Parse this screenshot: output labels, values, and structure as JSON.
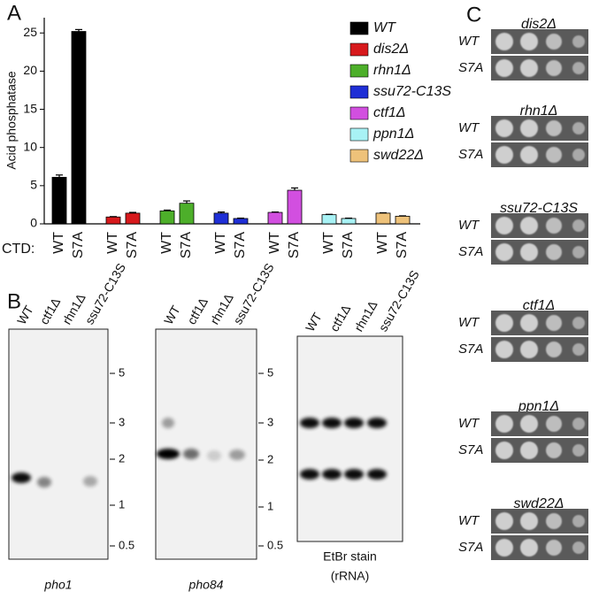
{
  "chart_data": {
    "type": "bar",
    "panel_label": "A",
    "ylabel": "Acid phosphatase",
    "xlabel": "CTD:",
    "categories": [
      "WT",
      "S7A",
      "WT",
      "S7A",
      "WT",
      "S7A",
      "WT",
      "S7A",
      "WT",
      "S7A",
      "WT",
      "S7A",
      "WT",
      "S7A"
    ],
    "series": [
      {
        "name": "WT",
        "color": "#000000",
        "values": [
          6.1,
          25.2,
          null,
          null,
          null,
          null,
          null,
          null,
          null,
          null,
          null,
          null,
          null,
          null
        ],
        "errors": [
          0.3,
          0.25,
          null,
          null,
          null,
          null,
          null,
          null,
          null,
          null,
          null,
          null,
          null,
          null
        ]
      },
      {
        "name": "dis2Δ",
        "color": "#d7191c",
        "values": [
          null,
          null,
          0.9,
          1.4,
          null,
          null,
          null,
          null,
          null,
          null,
          null,
          null,
          null,
          null
        ],
        "errors": [
          null,
          null,
          0.05,
          0.1,
          null,
          null,
          null,
          null,
          null,
          null,
          null,
          null,
          null,
          null
        ]
      },
      {
        "name": "rhn1Δ",
        "color": "#4daf2a",
        "values": [
          null,
          null,
          null,
          null,
          1.7,
          2.7,
          null,
          null,
          null,
          null,
          null,
          null,
          null,
          null
        ],
        "errors": [
          null,
          null,
          null,
          null,
          0.1,
          0.3,
          null,
          null,
          null,
          null,
          null,
          null,
          null,
          null
        ]
      },
      {
        "name": "ssu72-C13S",
        "color": "#1f2fd6",
        "values": [
          null,
          null,
          null,
          null,
          null,
          null,
          1.4,
          0.7,
          null,
          null,
          null,
          null,
          null,
          null
        ],
        "errors": [
          null,
          null,
          null,
          null,
          null,
          null,
          0.15,
          0.05,
          null,
          null,
          null,
          null,
          null,
          null
        ]
      },
      {
        "name": "ctf1Δ",
        "color": "#d24fe0",
        "values": [
          null,
          null,
          null,
          null,
          null,
          null,
          null,
          null,
          1.5,
          4.4,
          null,
          null,
          null,
          null
        ],
        "errors": [
          null,
          null,
          null,
          null,
          null,
          null,
          null,
          null,
          0.05,
          0.3,
          null,
          null,
          null,
          null
        ]
      },
      {
        "name": "ppn1Δ",
        "color": "#a8f2f5",
        "values": [
          null,
          null,
          null,
          null,
          null,
          null,
          null,
          null,
          null,
          null,
          1.2,
          0.7,
          null,
          null
        ],
        "errors": [
          null,
          null,
          null,
          null,
          null,
          null,
          null,
          null,
          null,
          null,
          0.05,
          0.05,
          null,
          null
        ]
      },
      {
        "name": "swd22Δ",
        "color": "#eec27a",
        "values": [
          null,
          null,
          null,
          null,
          null,
          null,
          null,
          null,
          null,
          null,
          null,
          null,
          1.4,
          1.0
        ],
        "errors": [
          null,
          null,
          null,
          null,
          null,
          null,
          null,
          null,
          null,
          null,
          null,
          null,
          0.05,
          0.05
        ]
      }
    ],
    "ylim": [
      0,
      27
    ],
    "yticks": [
      0,
      5,
      10,
      15,
      20,
      25
    ]
  },
  "panel_b": {
    "label": "B",
    "blots": [
      {
        "lanes": [
          "WT",
          "ctf1Δ",
          "rhn1Δ",
          "ssu72-C13S"
        ],
        "markers": [
          "5",
          "3",
          "2",
          "1",
          "0.5"
        ],
        "caption": [
          "pho1"
        ]
      },
      {
        "lanes": [
          "WT",
          "ctf1Δ",
          "rhn1Δ",
          "ssu72-C13S"
        ],
        "markers": [
          "5",
          "3",
          "2",
          "1",
          "0.5"
        ],
        "caption": [
          "pho84"
        ]
      },
      {
        "lanes": [
          "WT",
          "ctf1Δ",
          "rhn1Δ",
          "ssu72-C13S"
        ],
        "markers": [],
        "caption": [
          "EtBr stain",
          "(rRNA)"
        ]
      }
    ]
  },
  "panel_c": {
    "label": "C",
    "strains": [
      {
        "name": "dis2Δ",
        "rows": [
          "WT",
          "S7A"
        ]
      },
      {
        "name": "rhn1Δ",
        "rows": [
          "WT",
          "S7A"
        ]
      },
      {
        "name": "ssu72-C13S",
        "rows": [
          "WT",
          "S7A"
        ]
      },
      {
        "name": "ctf1Δ",
        "rows": [
          "WT",
          "S7A"
        ]
      },
      {
        "name": "ppn1Δ",
        "rows": [
          "WT",
          "S7A"
        ]
      },
      {
        "name": "swd22Δ",
        "rows": [
          "WT",
          "S7A"
        ]
      }
    ]
  }
}
